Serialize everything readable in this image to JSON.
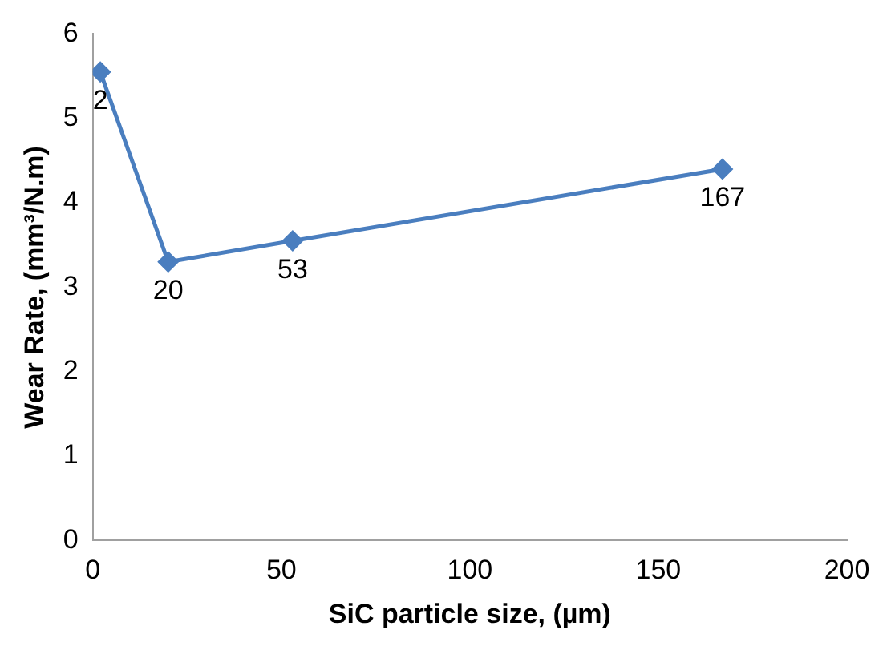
{
  "chart_data": {
    "type": "line",
    "xlabel": "SiC particle size, (µm)",
    "ylabel": "Wear Rate, (mm³/N.m)",
    "x": [
      2,
      20,
      53,
      167
    ],
    "series": [
      {
        "color": "#4a7ebf",
        "values": [
          5.55,
          3.3,
          3.55,
          4.4
        ]
      }
    ],
    "xlim": [
      0,
      200
    ],
    "xticks": [
      0,
      50,
      100,
      150,
      200
    ],
    "ylim": [
      0,
      6
    ],
    "yticks": [
      0,
      1,
      2,
      3,
      4,
      5,
      6
    ],
    "grid": false,
    "legend": false,
    "marker": "diamond",
    "line_style": "solid",
    "annotations": [
      {
        "text": "2",
        "x": 2,
        "y": 5.55
      },
      {
        "text": "20",
        "x": 20,
        "y": 3.3
      },
      {
        "text": "53",
        "x": 53,
        "y": 3.55
      },
      {
        "text": "167",
        "x": 167,
        "y": 4.4
      }
    ]
  }
}
